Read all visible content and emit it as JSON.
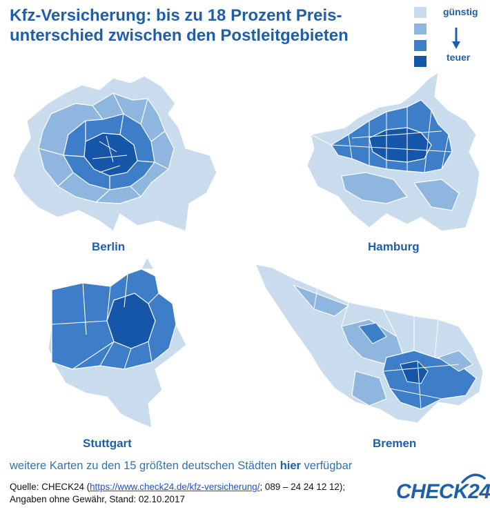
{
  "title": "Kfz-Versicherung: bis zu 18 Prozent Preis-unterschied zwischen den Postleitgebieten",
  "title_line1": "Kfz-Versicherung: bis zu 18 Prozent Preis-",
  "title_line2": "unterschied zwischen den Postleitgebieten",
  "legend": {
    "label_low": "günstig",
    "label_high": "teuer",
    "colors": [
      "#c9dcee",
      "#8eb6df",
      "#3e7dc8",
      "#1656a8"
    ]
  },
  "cities": [
    {
      "name": "Berlin"
    },
    {
      "name": "Hamburg"
    },
    {
      "name": "Stuttgart"
    },
    {
      "name": "Bremen"
    }
  ],
  "more_maps": {
    "prefix": "weitere Karten zu den 15 größten deutschen Städten ",
    "link": "hier",
    "suffix": " verfügbar"
  },
  "source": {
    "prefix": "Quelle: CHECK24 (",
    "url": "https://www.check24.de/kfz-versicherung/",
    "suffix": "; 089 – 24 24 12 12);",
    "line2": "Angaben ohne Gewähr, Stand: 02.10.2017"
  },
  "logo": "CHECK24"
}
